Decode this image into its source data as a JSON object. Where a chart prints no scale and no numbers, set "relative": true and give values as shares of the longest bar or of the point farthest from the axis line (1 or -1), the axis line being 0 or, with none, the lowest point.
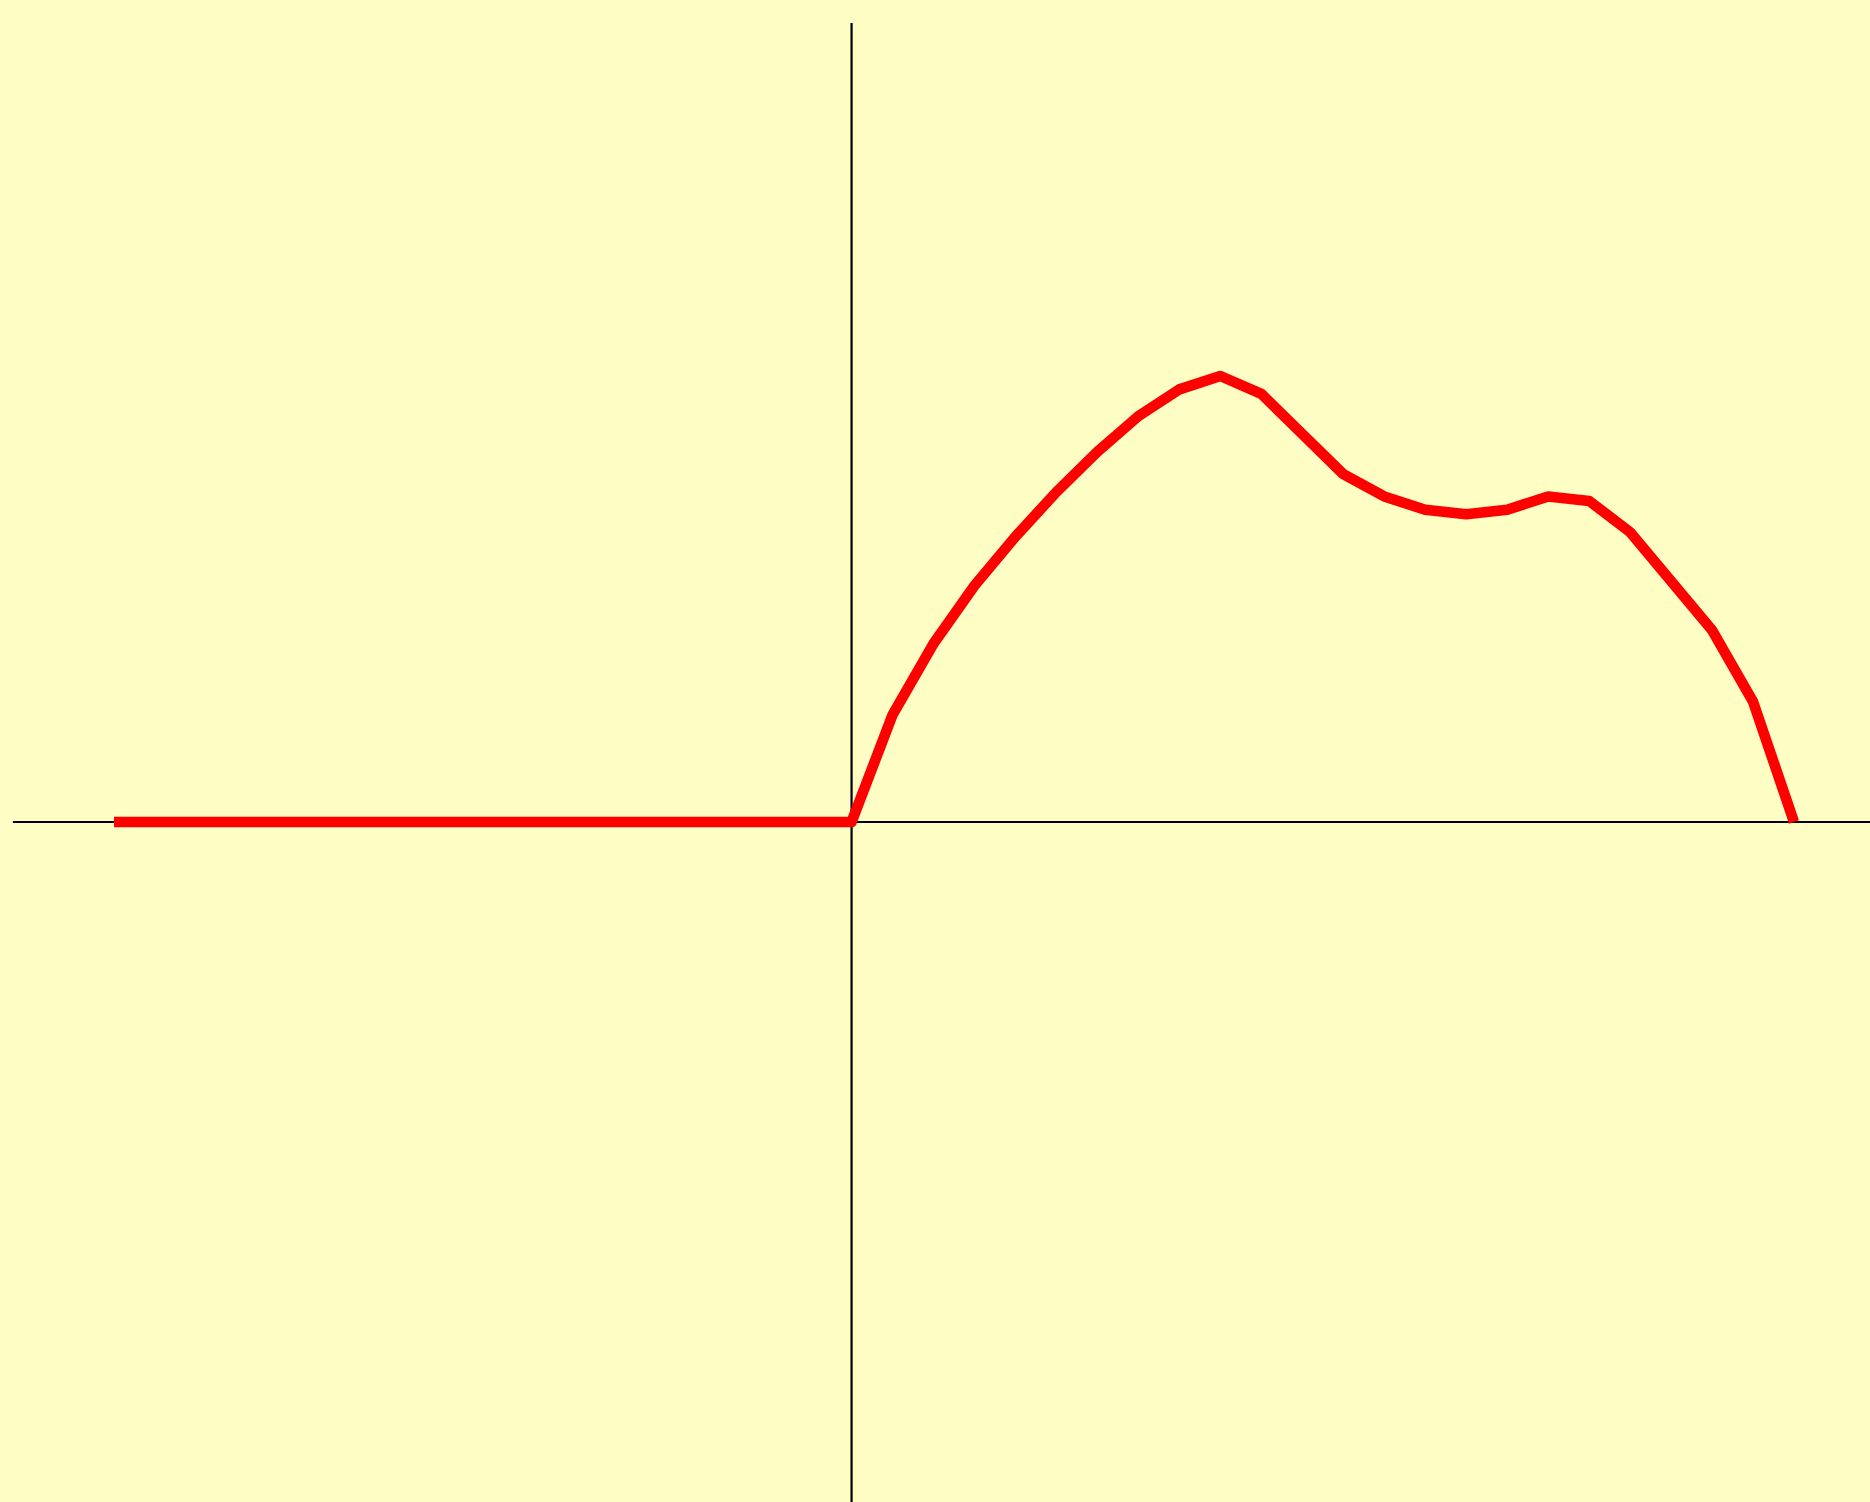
{
  "chart_data": {
    "type": "line",
    "relative": true,
    "color": "#ff0000",
    "categories": [
      null,
      null,
      null,
      null,
      null,
      null,
      null,
      null,
      null,
      null,
      null,
      null,
      null,
      null,
      null,
      null,
      null,
      null,
      null,
      null,
      null,
      null,
      null,
      null,
      null,
      null,
      null,
      null,
      null,
      null,
      null,
      null,
      null,
      null,
      null,
      null,
      null,
      null,
      null,
      null,
      null,
      null
    ],
    "values": [
      0,
      0,
      0,
      0,
      0,
      0,
      0,
      0,
      0,
      0,
      0,
      0,
      0,
      0,
      0,
      0,
      0,
      0,
      0,
      0.24,
      0.4,
      0.53,
      0.64,
      0.74,
      0.83,
      0.91,
      0.97,
      1,
      0.96,
      0.87,
      0.78,
      0.73,
      0.7,
      0.69,
      0.7,
      0.73,
      0.72,
      0.65,
      0.54,
      0.43,
      0.27,
      0
    ]
  }
}
